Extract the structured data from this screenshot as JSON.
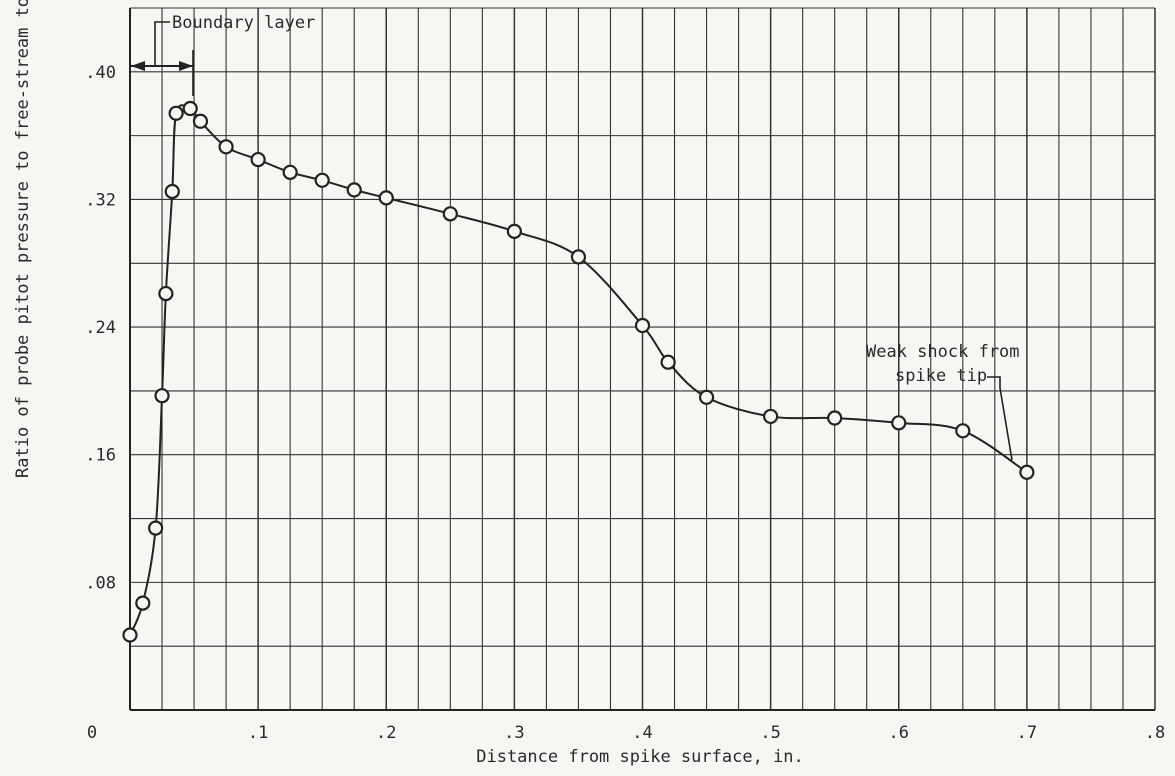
{
  "chart_data": {
    "type": "line",
    "xlabel": "Distance from spike surface, in.",
    "ylabel": "Ratio of probe pitot pressure to free-stream total pressure",
    "xlim": [
      0,
      0.8
    ],
    "ylim": [
      0,
      0.44
    ],
    "grid": true,
    "x_ticks": [
      {
        "value": 0,
        "label": "0"
      },
      {
        "value": 0.1,
        "label": ".1"
      },
      {
        "value": 0.2,
        "label": ".2"
      },
      {
        "value": 0.3,
        "label": ".3"
      },
      {
        "value": 0.4,
        "label": ".4"
      },
      {
        "value": 0.5,
        "label": ".5"
      },
      {
        "value": 0.6,
        "label": ".6"
      },
      {
        "value": 0.7,
        "label": ".7"
      },
      {
        "value": 0.8,
        "label": ".8"
      }
    ],
    "y_ticks": [
      {
        "value": 0.08,
        "label": ".08"
      },
      {
        "value": 0.16,
        "label": ".16"
      },
      {
        "value": 0.24,
        "label": ".24"
      },
      {
        "value": 0.32,
        "label": ".32"
      },
      {
        "value": 0.4,
        "label": ".40"
      }
    ],
    "series": [
      {
        "marker": "open-circle",
        "x": [
          0.0,
          0.01,
          0.02,
          0.025,
          0.028,
          0.033,
          0.036,
          0.047,
          0.055,
          0.075,
          0.1,
          0.125,
          0.15,
          0.175,
          0.2,
          0.25,
          0.3,
          0.35,
          0.4,
          0.42,
          0.45,
          0.5,
          0.55,
          0.6,
          0.65,
          0.7
        ],
        "y": [
          0.047,
          0.067,
          0.114,
          0.197,
          0.261,
          0.325,
          0.374,
          0.377,
          0.369,
          0.353,
          0.345,
          0.337,
          0.332,
          0.326,
          0.321,
          0.311,
          0.3,
          0.284,
          0.241,
          0.218,
          0.196,
          0.184,
          0.183,
          0.18,
          0.175,
          0.149
        ]
      }
    ],
    "annotations": [
      {
        "text": "Boundary layer"
      },
      {
        "lines": [
          "Weak shock from",
          "spike tip"
        ]
      }
    ]
  }
}
